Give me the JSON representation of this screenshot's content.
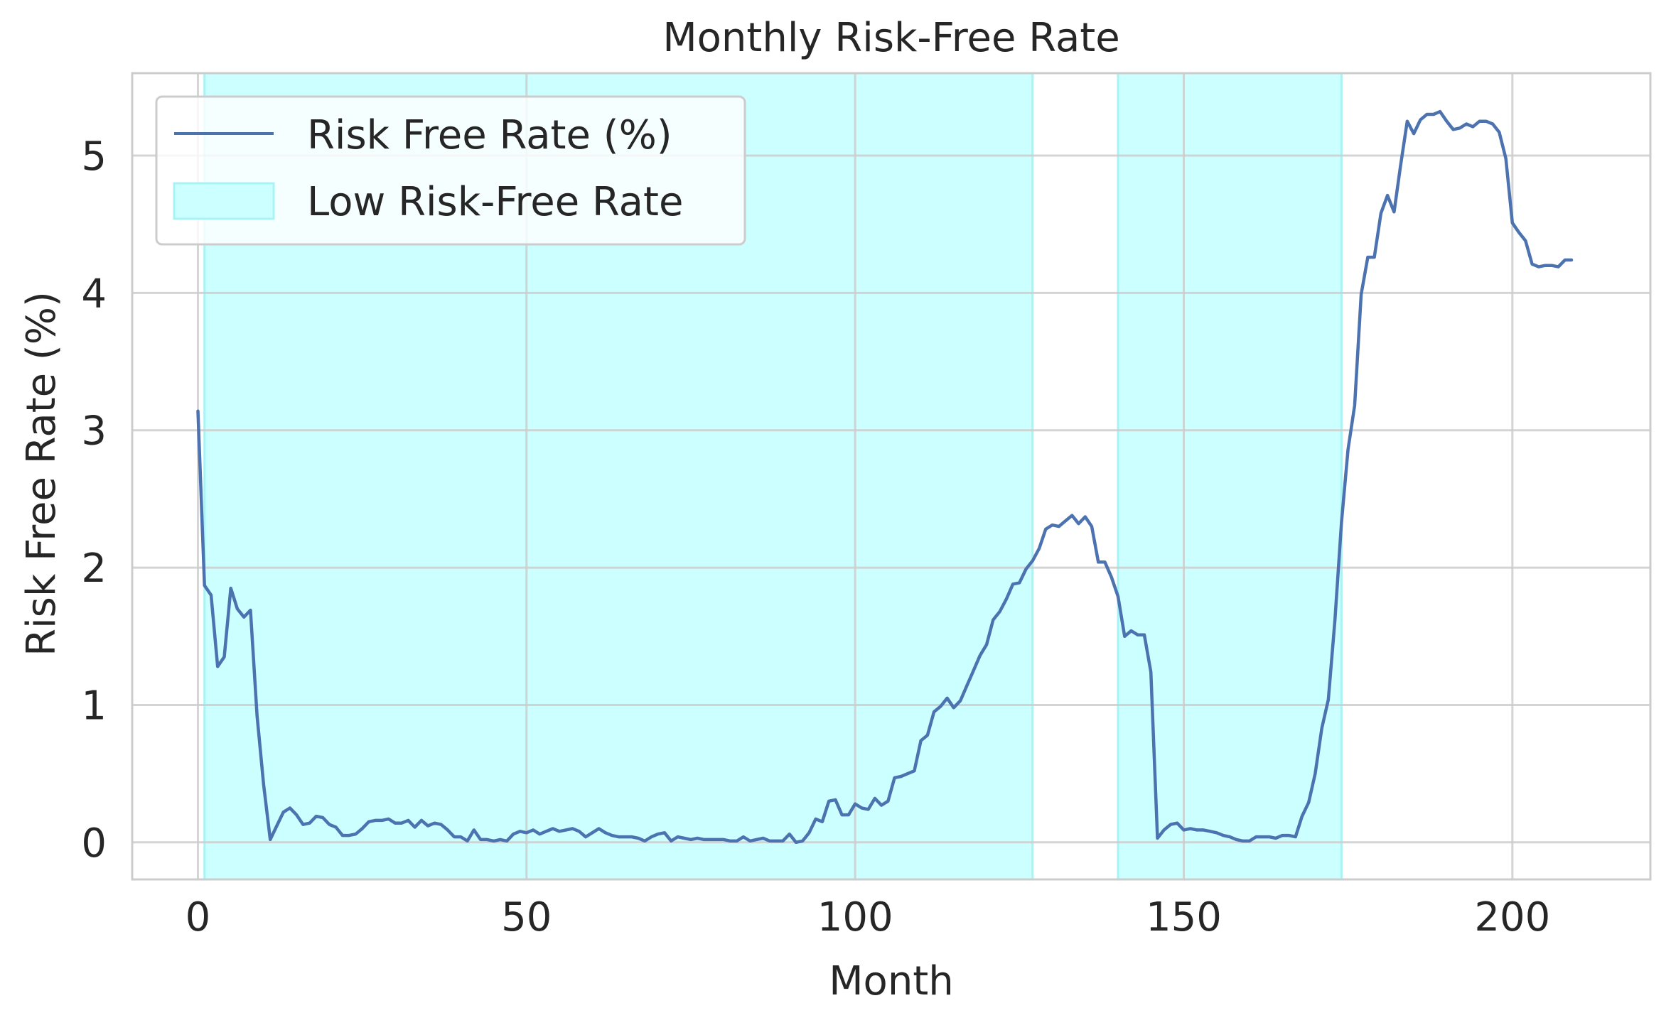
{
  "chart_data": {
    "type": "line",
    "title": "Monthly Risk-Free Rate",
    "xlabel": "Month",
    "ylabel": "Risk Free Rate (%)",
    "xlim": [
      -10,
      221
    ],
    "ylim": [
      -0.27,
      5.6
    ],
    "xticks": [
      0,
      50,
      100,
      150,
      200
    ],
    "xtick_labels": [
      "0",
      "50",
      "100",
      "150",
      "200"
    ],
    "yticks": [
      0,
      1,
      2,
      3,
      4,
      5
    ],
    "ytick_labels": [
      "0",
      "1",
      "2",
      "3",
      "4",
      "5"
    ],
    "grid": true,
    "legend_position": "top-left",
    "colors": {
      "line": "#4c72b0",
      "shade": "#ccffff",
      "shade_edge": "#a9f3f5",
      "grid": "#cccccc",
      "axes": "#cccccc"
    },
    "series": [
      {
        "name": "Risk Free Rate (%)",
        "x_start": 0,
        "values": [
          3.14,
          1.87,
          1.8,
          1.28,
          1.35,
          1.85,
          1.7,
          1.64,
          1.69,
          0.92,
          0.42,
          0.02,
          0.12,
          0.22,
          0.25,
          0.2,
          0.13,
          0.14,
          0.19,
          0.18,
          0.13,
          0.11,
          0.05,
          0.05,
          0.06,
          0.1,
          0.15,
          0.16,
          0.16,
          0.17,
          0.14,
          0.14,
          0.16,
          0.11,
          0.16,
          0.12,
          0.14,
          0.13,
          0.09,
          0.04,
          0.04,
          0.01,
          0.09,
          0.02,
          0.02,
          0.01,
          0.02,
          0.01,
          0.06,
          0.08,
          0.07,
          0.09,
          0.06,
          0.08,
          0.1,
          0.08,
          0.09,
          0.1,
          0.08,
          0.04,
          0.07,
          0.1,
          0.07,
          0.05,
          0.04,
          0.04,
          0.04,
          0.03,
          0.01,
          0.04,
          0.06,
          0.07,
          0.01,
          0.04,
          0.03,
          0.02,
          0.03,
          0.02,
          0.02,
          0.02,
          0.02,
          0.01,
          0.01,
          0.04,
          0.01,
          0.02,
          0.03,
          0.01,
          0.01,
          0.01,
          0.06,
          0.0,
          0.01,
          0.07,
          0.17,
          0.15,
          0.3,
          0.31,
          0.2,
          0.2,
          0.28,
          0.25,
          0.24,
          0.32,
          0.27,
          0.3,
          0.47,
          0.48,
          0.5,
          0.52,
          0.74,
          0.78,
          0.95,
          0.99,
          1.05,
          0.98,
          1.03,
          1.14,
          1.25,
          1.36,
          1.44,
          1.62,
          1.68,
          1.77,
          1.88,
          1.89,
          1.99,
          2.05,
          2.14,
          2.28,
          2.31,
          2.3,
          2.34,
          2.38,
          2.32,
          2.37,
          2.3,
          2.04,
          2.04,
          1.93,
          1.79,
          1.5,
          1.54,
          1.51,
          1.51,
          1.24,
          0.03,
          0.09,
          0.13,
          0.14,
          0.09,
          0.1,
          0.09,
          0.09,
          0.08,
          0.07,
          0.05,
          0.04,
          0.02,
          0.01,
          0.01,
          0.04,
          0.04,
          0.04,
          0.03,
          0.05,
          0.05,
          0.04,
          0.19,
          0.29,
          0.5,
          0.83,
          1.04,
          1.62,
          2.33,
          2.86,
          3.18,
          3.99,
          4.26,
          4.26,
          4.58,
          4.71,
          4.59,
          4.93,
          5.25,
          5.16,
          5.26,
          5.3,
          5.3,
          5.32,
          5.25,
          5.19,
          5.2,
          5.23,
          5.21,
          5.25,
          5.25,
          5.23,
          5.17,
          4.98,
          4.51,
          4.44,
          4.38,
          4.21,
          4.19,
          4.2,
          4.2,
          4.19,
          4.24,
          4.24
        ]
      }
    ],
    "shaded_regions": {
      "name": "Low Risk-Free Rate",
      "ranges": [
        [
          1,
          127
        ],
        [
          140,
          174
        ]
      ]
    },
    "legend": {
      "entries": [
        "Risk Free Rate (%)",
        "Low Risk-Free Rate"
      ]
    }
  }
}
